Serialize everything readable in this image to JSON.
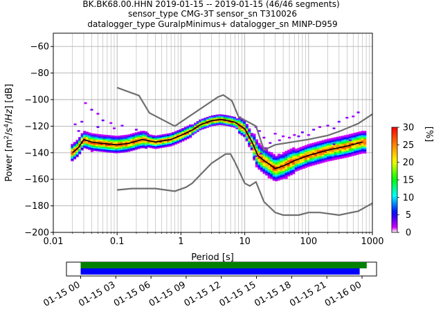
{
  "title_lines": [
    "BK.BK68.00.HHN   2019-01-15 -- 2019-01-15  (46/46 segments)",
    "sensor_type CMG-3T sensor_sn T310026",
    "datalogger_type GuralpMinimus+ datalogger_sn MINP-D959"
  ],
  "chart_data": {
    "type": "heatmap",
    "xlabel": "Period [s]",
    "ylabel": "Power [m2/s4/Hz] [dB]",
    "xscale": "log",
    "xlim": [
      0.01,
      1000
    ],
    "ylim": [
      -200,
      -50
    ],
    "x_tick_values": [
      0.01,
      0.1,
      1,
      10,
      100,
      1000
    ],
    "x_tick_labels": [
      "0.01",
      "0.1",
      "1",
      "10",
      "100",
      "1000"
    ],
    "y_tick_values": [
      -200,
      -180,
      -160,
      -140,
      -120,
      -100,
      -80,
      -60
    ],
    "y_tick_labels": [
      "−200",
      "−180",
      "−160",
      "−140",
      "−120",
      "−100",
      "−80",
      "−60"
    ],
    "grid": true,
    "colorbar": {
      "label": "[%]",
      "range": [
        0,
        30
      ],
      "tick_values": [
        0,
        5,
        10,
        15,
        20,
        25,
        30
      ],
      "tick_labels": [
        "0",
        "5",
        "10",
        "15",
        "20",
        "25",
        "30"
      ],
      "colors": [
        "#ffffff",
        "#ff00ff",
        "#0000ff",
        "#00ffff",
        "#00ff00",
        "#ffff00",
        "#ff8000",
        "#ff0000"
      ]
    },
    "mode_curve": {
      "color": "#000000",
      "points": [
        [
          0.02,
          -140
        ],
        [
          0.025,
          -136
        ],
        [
          0.03,
          -130
        ],
        [
          0.04,
          -132
        ],
        [
          0.06,
          -133
        ],
        [
          0.1,
          -134
        ],
        [
          0.15,
          -133
        ],
        [
          0.25,
          -130
        ],
        [
          0.4,
          -132
        ],
        [
          0.7,
          -130
        ],
        [
          1,
          -127
        ],
        [
          1.5,
          -123
        ],
        [
          2,
          -119
        ],
        [
          3,
          -116
        ],
        [
          4,
          -115
        ],
        [
          5,
          -115.5
        ],
        [
          7,
          -117
        ],
        [
          10,
          -122
        ],
        [
          13,
          -132
        ],
        [
          16,
          -142
        ],
        [
          20,
          -146
        ],
        [
          25,
          -149
        ],
        [
          30,
          -152
        ],
        [
          40,
          -150
        ],
        [
          60,
          -146
        ],
        [
          100,
          -142
        ],
        [
          200,
          -138
        ],
        [
          400,
          -135
        ],
        [
          700,
          -132
        ]
      ]
    },
    "nlnm": {
      "color": "#6e6e6e",
      "points": [
        [
          0.1,
          -168
        ],
        [
          0.17,
          -167
        ],
        [
          0.4,
          -167
        ],
        [
          0.8,
          -169
        ],
        [
          1.2,
          -166
        ],
        [
          1.5,
          -163
        ],
        [
          3,
          -148
        ],
        [
          5,
          -141
        ],
        [
          6,
          -141
        ],
        [
          7,
          -147
        ],
        [
          10,
          -163
        ],
        [
          12,
          -165
        ],
        [
          15,
          -162
        ],
        [
          20,
          -177
        ],
        [
          30,
          -185
        ],
        [
          40,
          -187
        ],
        [
          70,
          -187
        ],
        [
          100,
          -185
        ],
        [
          150,
          -185
        ],
        [
          300,
          -187
        ],
        [
          600,
          -184
        ],
        [
          1000,
          -178
        ]
      ]
    },
    "nhnm": {
      "color": "#6e6e6e",
      "points": [
        [
          0.1,
          -91
        ],
        [
          0.22,
          -97
        ],
        [
          0.32,
          -110
        ],
        [
          0.8,
          -120
        ],
        [
          3.8,
          -98
        ],
        [
          4.6,
          -96.5
        ],
        [
          6.3,
          -101
        ],
        [
          8,
          -113
        ],
        [
          15,
          -120
        ],
        [
          20,
          -138
        ],
        [
          30,
          -134
        ],
        [
          100,
          -130
        ],
        [
          200,
          -127
        ],
        [
          300,
          -124
        ],
        [
          600,
          -118
        ],
        [
          1000,
          -111
        ]
      ]
    },
    "timeline": {
      "tick_labels": [
        "01-15 00",
        "01-15 03",
        "01-15 06",
        "01-15 09",
        "01-15 12",
        "01-15 15",
        "01-15 18",
        "01-15 21",
        "01-16 00"
      ],
      "bars": [
        {
          "color": "#008000",
          "start_hours": 0,
          "end_hours": 24.4
        },
        {
          "color": "#0000ff",
          "start_hours": 0,
          "end_hours": 23.8
        }
      ]
    }
  }
}
